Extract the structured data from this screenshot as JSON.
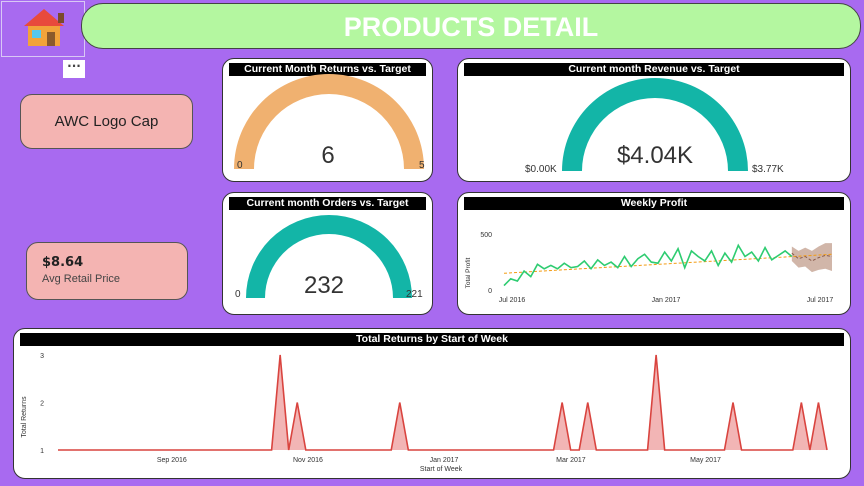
{
  "header": {
    "title": "PRODUCTS DETAIL",
    "more_label": "···"
  },
  "product": {
    "name": "AWC Logo Cap"
  },
  "kpi": {
    "value": "$8.64",
    "label": "Avg Retail Price"
  },
  "gauges": [
    {
      "title": "Current Month Returns vs. Target",
      "value": "6",
      "min": "0",
      "target": "5",
      "color": "#f0b170"
    },
    {
      "title": "Current month Revenue vs. Target",
      "value": "$4.04K",
      "min": "$0.00K",
      "target": "$3.77K",
      "color": "#13b5a7"
    },
    {
      "title": "Current month Orders vs. Target",
      "value": "232",
      "min": "0",
      "target": "221",
      "color": "#13b5a7"
    }
  ],
  "chart_data": [
    {
      "type": "line",
      "title": "Weekly Profit",
      "ylabel": "Total Profit",
      "xlabel": "",
      "x_tick_labels": [
        "Jul 2016",
        "Jan 2017",
        "Jul 2017"
      ],
      "y_ticks": [
        0,
        500
      ],
      "ylim": [
        0,
        600
      ],
      "series": [
        {
          "name": "Profit",
          "values": [
            40,
            100,
            80,
            170,
            120,
            230,
            190,
            220,
            190,
            240,
            200,
            210,
            260,
            190,
            270,
            220,
            250,
            200,
            300,
            210,
            280,
            320,
            250,
            240,
            340,
            260,
            370,
            200,
            350,
            300,
            260,
            350,
            220,
            330,
            250,
            400,
            300,
            340,
            260,
            380,
            270,
            310,
            350,
            300
          ]
        },
        {
          "name": "Trend",
          "values": [
            150,
            320
          ]
        },
        {
          "name": "Forecast",
          "values": [
            330,
            280,
            300,
            260,
            290,
            310,
            300
          ]
        }
      ],
      "colors": {
        "line": "#2ecc71",
        "trend": "#f39c12",
        "forecast": "#8a5a4a",
        "band": "#c9a99a"
      }
    },
    {
      "type": "area",
      "title": "Total Returns by Start of Week",
      "xlabel": "Start of Week",
      "ylabel": "Total Returns",
      "x_tick_labels": [
        "Sep 2016",
        "Nov 2016",
        "Jan 2017",
        "Mar 2017",
        "May 2017"
      ],
      "y_ticks": [
        1,
        2,
        3
      ],
      "ylim": [
        1,
        3
      ],
      "values": [
        1,
        1,
        1,
        1,
        1,
        1,
        1,
        1,
        1,
        1,
        1,
        1,
        1,
        1,
        1,
        1,
        1,
        1,
        1,
        1,
        1,
        1,
        1,
        1,
        1,
        1,
        3,
        1,
        2,
        1,
        1,
        1,
        1,
        1,
        1,
        1,
        1,
        1,
        1,
        1,
        2,
        1,
        1,
        1,
        1,
        1,
        1,
        1,
        1,
        1,
        1,
        1,
        1,
        1,
        1,
        1,
        1,
        1,
        1,
        2,
        1,
        1,
        2,
        1,
        1,
        1,
        1,
        1,
        1,
        1,
        3,
        1,
        1,
        1,
        1,
        1,
        1,
        1,
        1,
        2,
        1,
        1,
        1,
        1,
        1,
        1,
        1,
        2,
        1,
        2,
        1
      ],
      "colors": {
        "line": "#d9443f",
        "fill": "#f2b5b5"
      }
    }
  ]
}
